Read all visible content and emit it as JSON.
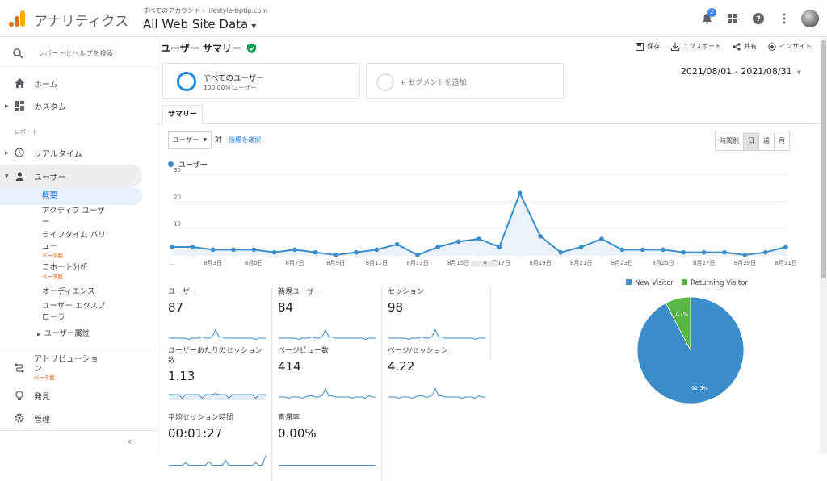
{
  "header": {
    "app_title": "アナリティクス",
    "breadcrumb": "すべてのアカウント › lifestyle-tiptip.com",
    "view_title": "All Web Site Data",
    "notification_count": "2"
  },
  "sidebar": {
    "search_placeholder": "レポートとヘルプを検索",
    "home": "ホーム",
    "custom": "カスタム",
    "section_reports": "レポート",
    "realtime": "リアルタイム",
    "user": "ユーザー",
    "sub": {
      "overview": "概要",
      "active_users": "アクティブ ユーザ ー",
      "lifetime_value": "ライフタイム バリ ュー",
      "lifetime_beta": "ベータ版",
      "cohort": "コホート分析",
      "cohort_beta": "ベータ版",
      "audience": "オーディエンス",
      "explorer": "ユーザー エクスプ ローラ",
      "attributes": "ユーザー属性"
    },
    "attribution": "アトリビューショ ン",
    "attribution_beta": "ベータ版",
    "discover": "発見",
    "admin": "管理"
  },
  "main": {
    "title": "ユーザー サマリー",
    "actions": {
      "save": "保存",
      "export": "エクスポート",
      "share": "共有",
      "insight": "インサイト"
    },
    "segment_all_title": "すべてのユーザー",
    "segment_all_sub": "100.00% ユーザー",
    "segment_add": "+ セグメントを追加",
    "date_range": "2021/08/01 - 2021/08/31",
    "tab_summary": "サマリー",
    "metric_select": "ユーザー",
    "vs": "対",
    "pick_metric": "指標を選択",
    "granularity": [
      "時間別",
      "日",
      "週",
      "月"
    ],
    "legend_series": "ユーザー"
  },
  "chart_data": {
    "type": "line",
    "series": [
      {
        "name": "ユーザー",
        "values": [
          3,
          3,
          2,
          2,
          2,
          1,
          2,
          1,
          0,
          1,
          2,
          4,
          0,
          3,
          5,
          6,
          3,
          23,
          7,
          1,
          3,
          6,
          2,
          2,
          2,
          1,
          1,
          1,
          0,
          1,
          3
        ]
      }
    ],
    "x": [
      "8月1日",
      "8月2日",
      "8月3日",
      "8月4日",
      "8月5日",
      "8月6日",
      "8月7日",
      "8月8日",
      "8月9日",
      "8月10日",
      "8月11日",
      "8月12日",
      "8月13日",
      "8月14日",
      "8月15日",
      "8月16日",
      "8月17日",
      "8月18日",
      "8月19日",
      "8月20日",
      "8月21日",
      "8月22日",
      "8月23日",
      "8月24日",
      "8月25日",
      "8月26日",
      "8月27日",
      "8月28日",
      "8月29日",
      "8月30日",
      "8月31日"
    ],
    "x_ticks": [
      "...",
      "8月3日",
      "8月5日",
      "8月7日",
      "8月9日",
      "8月11日",
      "8月13日",
      "8月15日",
      "8月17日",
      "8月19日",
      "8月21日",
      "8月23日",
      "8月25日",
      "8月27日",
      "8月29日",
      "8月31日"
    ],
    "y_ticks": [
      "30",
      "20",
      "10"
    ],
    "ylim": [
      0,
      30
    ],
    "color": "#3c8dc9",
    "grid": true
  },
  "metrics": [
    {
      "label": "ユーザー",
      "value": "87"
    },
    {
      "label": "新規ユーザー",
      "value": "84"
    },
    {
      "label": "セッション",
      "value": "98"
    },
    {
      "label": "ユーザーあたりのセッション数",
      "value": "1.13"
    },
    {
      "label": "ページビュー数",
      "value": "414"
    },
    {
      "label": "ページ/セッション",
      "value": "4.22"
    },
    {
      "label": "平均セッション時間",
      "value": "00:01:27"
    },
    {
      "label": "直帰率",
      "value": "0.00%"
    }
  ],
  "pie_chart": {
    "type": "pie",
    "labels": [
      "New Visitor",
      "Returning Visitor"
    ],
    "values": [
      92.3,
      7.7
    ],
    "value_labels": [
      "92.3%",
      "7.7%"
    ],
    "colors": [
      "#3c8dc9",
      "#58b846"
    ]
  }
}
